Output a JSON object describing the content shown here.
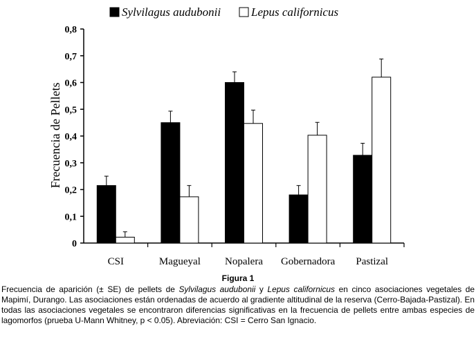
{
  "chart_data": {
    "type": "bar",
    "title": "",
    "xlabel": "",
    "ylabel": "Frecuencia de Pellets",
    "ylim": [
      0,
      0.8
    ],
    "yticks": [
      0,
      0.1,
      0.2,
      0.3,
      0.4,
      0.5,
      0.6,
      0.7,
      0.8
    ],
    "ytick_labels": [
      "0",
      "0,1",
      "0,2",
      "0,3",
      "0,4",
      "0,5",
      "0,6",
      "0,7",
      "0,8"
    ],
    "categories": [
      "CSI",
      "Magueyal",
      "Nopalera",
      "Gobernadora",
      "Pastizal"
    ],
    "series": [
      {
        "name": "Sylvilagus audubonii",
        "color": "#000000",
        "values": [
          0.215,
          0.45,
          0.6,
          0.18,
          0.328
        ],
        "se": [
          0.035,
          0.043,
          0.04,
          0.035,
          0.045
        ]
      },
      {
        "name": "Lepus californicus",
        "color": "#ffffff",
        "values": [
          0.022,
          0.173,
          0.447,
          0.403,
          0.62
        ],
        "se": [
          0.02,
          0.042,
          0.05,
          0.048,
          0.068
        ]
      }
    ],
    "legend_position": "top"
  },
  "caption": {
    "title": "Figura 1",
    "text_1": "Frecuencia de aparición (± SE) de pellets de ",
    "species_1": "Sylvilagus audubonii",
    "text_2": " y ",
    "species_2": "Lepus californicus",
    "text_3": " en cinco asociaciones vegetales de Mapimí, Durango. Las asociaciones están ordenadas de acuerdo al gradiente altitudinal de la reserva (Cerro-Bajada-Pastizal). En todas las asociaciones vegetales se encontraron diferencias significativas en la frecuencia de pellets entre ambas especies de lagomorfos (prueba U-Mann Whitney, p < 0.05). Abreviación: CSI = Cerro San Ignacio."
  }
}
